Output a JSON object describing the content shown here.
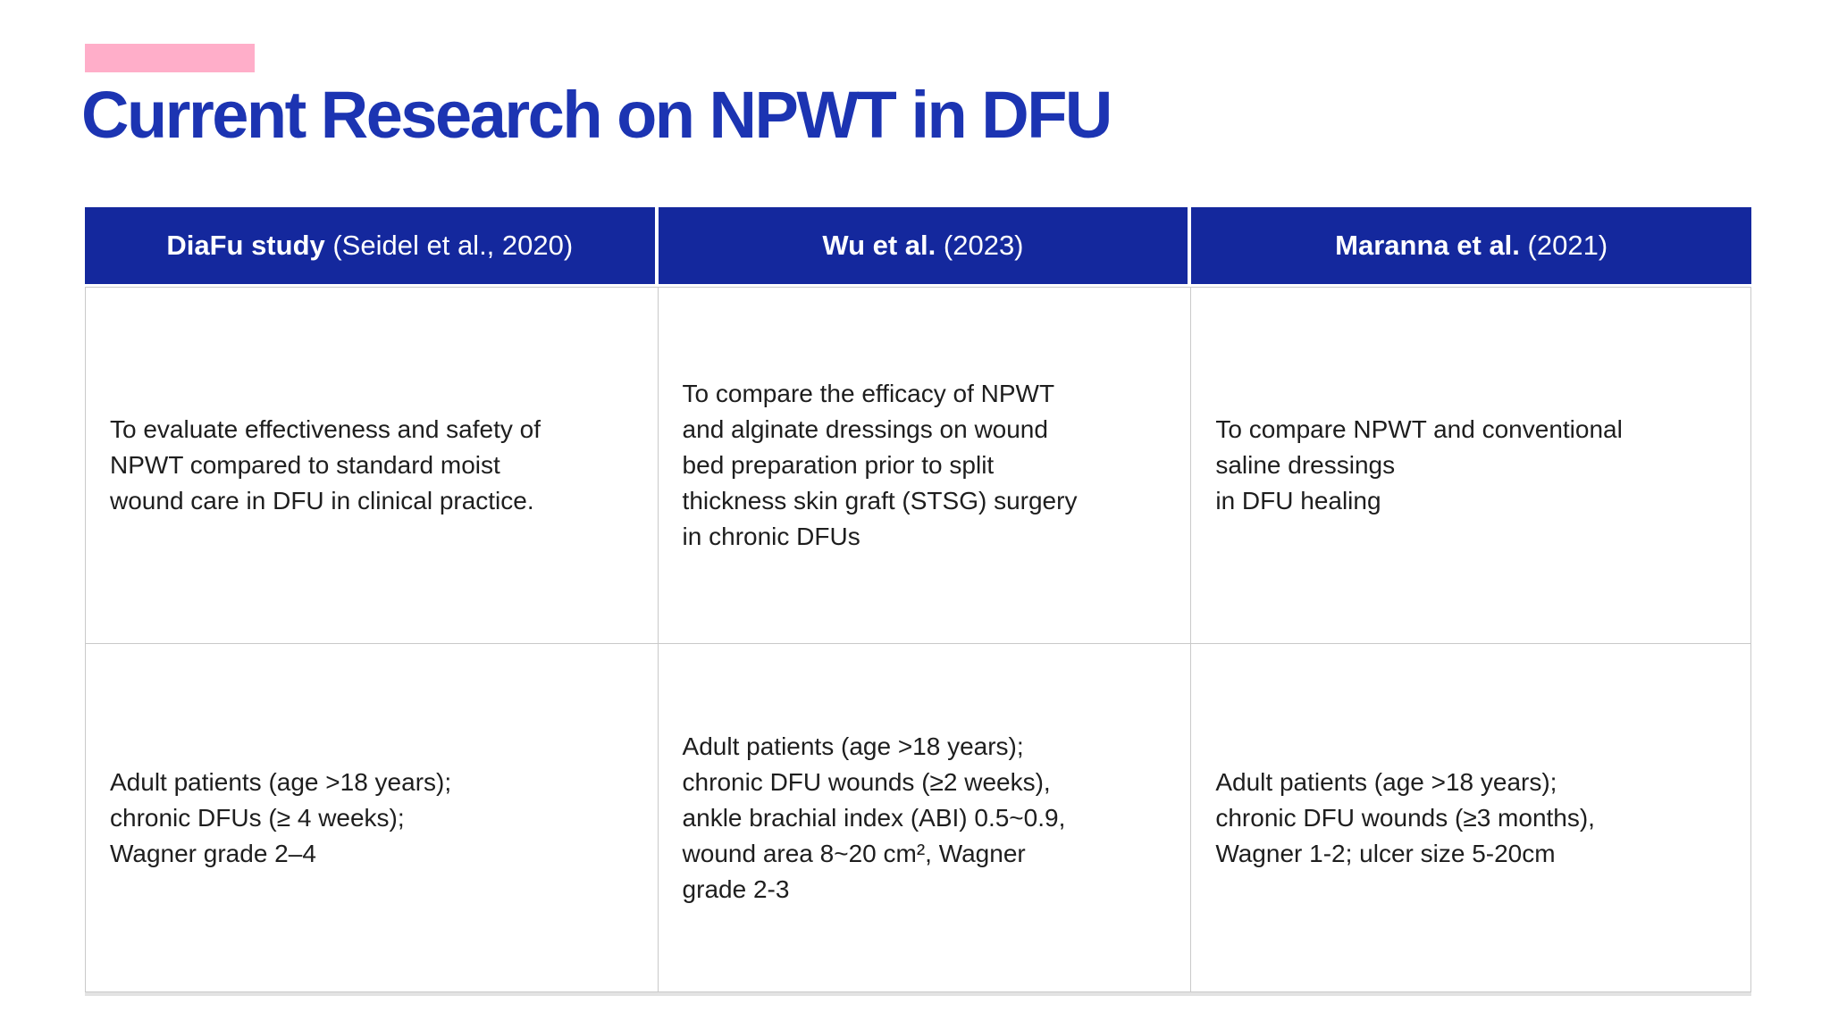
{
  "slide": {
    "title": "Current Research on NPWT in DFU",
    "colors": {
      "title_text": "#1C34B2",
      "accent_bar": "#FFAEC9",
      "table_header_bg": "#14289D",
      "table_header_text": "#FFFFFF",
      "body_text": "#1E1E1E",
      "table_border": "#C9C9C9"
    }
  },
  "table": {
    "columns": [
      {
        "bold": "DiaFu study",
        "rest": " (Seidel et al., 2020)"
      },
      {
        "bold": "Wu et al.",
        "rest": " (2023)"
      },
      {
        "bold": "Maranna et al.",
        "rest": " (2021)"
      }
    ],
    "rows": [
      {
        "cells": [
          "To evaluate effectiveness and safety of\nNPWT compared to standard moist\nwound care in DFU in clinical practice.",
          "To compare the efficacy of NPWT\nand alginate dressings on wound\nbed preparation prior to split\nthickness skin graft (STSG) surgery\nin chronic DFUs",
          "To compare NPWT and conventional\nsaline dressings\nin DFU healing"
        ]
      },
      {
        "cells": [
          "Adult patients (age >18 years);\nchronic DFUs (≥ 4 weeks);\nWagner grade 2–4",
          "Adult patients (age >18 years);\nchronic DFU wounds (≥2 weeks),\nankle brachial index (ABI) 0.5~0.9,\nwound area 8~20 cm², Wagner\ngrade 2-3",
          "Adult patients (age >18 years);\nchronic DFU wounds (≥3 months),\nWagner 1-2; ulcer size 5-20cm"
        ]
      }
    ]
  }
}
